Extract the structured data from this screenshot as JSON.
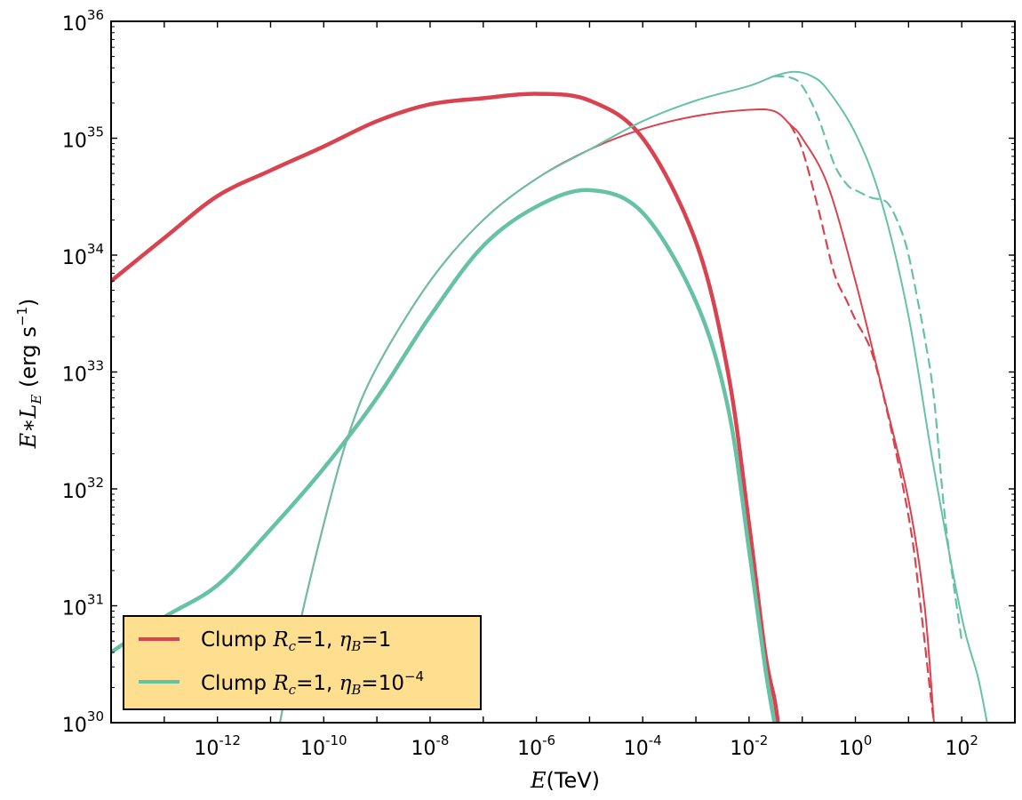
{
  "chart_data": {
    "type": "line",
    "xscale": "log",
    "yscale": "log",
    "xlim": [
      1e-14,
      1000
    ],
    "ylim": [
      1e+30,
      1e+36
    ],
    "grid": false,
    "legend": "bottom-left",
    "xlabel": {
      "var": "E",
      "text": "(TeV)"
    },
    "ylabel": {
      "var": "E∗L",
      "sub": "E",
      "text": " (erg s",
      "sup": "−1",
      "close": ")"
    },
    "x_ticks": [
      {
        "base": "10",
        "exp": "-12",
        "value": 1e-12
      },
      {
        "base": "10",
        "exp": "-10",
        "value": 1e-10
      },
      {
        "base": "10",
        "exp": "-8",
        "value": 1e-08
      },
      {
        "base": "10",
        "exp": "-6",
        "value": 1e-06
      },
      {
        "base": "10",
        "exp": "-4",
        "value": 0.0001
      },
      {
        "base": "10",
        "exp": "-2",
        "value": 0.01
      },
      {
        "base": "10",
        "exp": "0",
        "value": 1
      },
      {
        "base": "10",
        "exp": "2",
        "value": 100
      }
    ],
    "y_ticks": [
      {
        "base": "10",
        "exp": "30",
        "value": 1e+30
      },
      {
        "base": "10",
        "exp": "31",
        "value": 1e+31
      },
      {
        "base": "10",
        "exp": "32",
        "value": 1e+32
      },
      {
        "base": "10",
        "exp": "33",
        "value": 1e+33
      },
      {
        "base": "10",
        "exp": "34",
        "value": 1e+34
      },
      {
        "base": "10",
        "exp": "35",
        "value": 1e+35
      },
      {
        "base": "10",
        "exp": "36",
        "value": 1e+36
      }
    ],
    "legend_entries": [
      {
        "text": "Clump ",
        "var1": "R",
        "sub1": "c",
        "eq1": "=1, ",
        "var2": "η",
        "sub2": "B",
        "eq2": "=1",
        "color": "#d9434f"
      },
      {
        "text": "Clump ",
        "var1": "R",
        "sub1": "c",
        "eq1": "=1, ",
        "var2": "η",
        "sub2": "B",
        "eq2": "=10",
        "sup2": "−4",
        "color": "#66c2a5"
      }
    ],
    "series": [
      {
        "color": "#d9434f",
        "style": "thick",
        "x": [
          1e-14,
          1e-13,
          1e-12,
          1e-11,
          1e-10,
          1e-09,
          1e-08,
          1e-07,
          1e-06,
          1e-05,
          0.0001,
          0.001,
          0.004,
          0.01,
          0.02,
          0.03,
          0.035
        ],
        "y": [
          6e+33,
          1.4e+34,
          3.2e+34,
          5.3e+34,
          8.5e+34,
          1.4e+35,
          1.95e+35,
          2.2e+35,
          2.4e+35,
          2.1e+35,
          1e+35,
          1.3e+34,
          1e+33,
          5e+31,
          4e+30,
          1.6e+30,
          1e+30
        ]
      },
      {
        "color": "#66c2a5",
        "style": "thick",
        "x": [
          1e-14,
          1e-13,
          1e-12,
          1e-11,
          1e-10,
          1e-09,
          1e-08,
          1e-07,
          1e-06,
          1e-05,
          0.0001,
          0.001,
          0.004,
          0.01,
          0.02,
          0.03
        ],
        "y": [
          4e+30,
          8e+30,
          1.5e+31,
          4.5e+31,
          1.5e+32,
          6e+32,
          3e+33,
          1.2e+34,
          2.6e+34,
          3.6e+34,
          2.3e+34,
          4e+33,
          5e+32,
          3e+31,
          3e+30,
          1e+30
        ]
      },
      {
        "color": "#d9434f",
        "style": "thin",
        "x": [
          1.5e-11,
          3e-11,
          1e-10,
          3e-10,
          1e-09,
          1e-08,
          1e-07,
          1e-06,
          1e-05,
          0.0001,
          0.001,
          0.01,
          0.03,
          0.06,
          0.1,
          0.3,
          1,
          3,
          10,
          20,
          30
        ],
        "y": [
          1e+30,
          5e+30,
          5e+31,
          3e+32,
          1.1e+33,
          6e+33,
          2e+34,
          4.5e+34,
          8e+34,
          1.2e+35,
          1.55e+35,
          1.75e+35,
          1.7e+35,
          1.3e+35,
          1e+35,
          4e+34,
          6e+33,
          8e+32,
          8e+31,
          1e+31,
          1e+30
        ]
      },
      {
        "color": "#d9434f",
        "style": "dashed",
        "x": [
          0.06,
          0.1,
          0.2,
          0.4,
          0.7,
          1,
          2,
          4,
          8,
          12,
          16,
          20,
          25,
          30
        ],
        "y": [
          1.3e+35,
          8e+34,
          2.5e+34,
          7e+33,
          4e+33,
          2.8e+33,
          1.5e+33,
          4.5e+32,
          1e+32,
          3.5e+31,
          1.2e+31,
          5e+30,
          2e+30,
          1e+30
        ]
      },
      {
        "color": "#66c2a5",
        "style": "thin",
        "x": [
          1.5e-11,
          3e-11,
          1e-10,
          3e-10,
          1e-09,
          1e-08,
          1e-07,
          1e-06,
          1e-05,
          0.0001,
          0.001,
          0.01,
          0.03,
          0.07,
          0.15,
          0.3,
          1,
          3,
          10,
          30,
          100,
          200,
          300
        ],
        "y": [
          1e+30,
          5e+30,
          5e+31,
          3e+32,
          1.1e+33,
          6e+33,
          2e+34,
          4.5e+34,
          8e+34,
          1.4e+35,
          2.1e+35,
          2.8e+35,
          3.4e+35,
          3.7e+35,
          3.4e+35,
          2.6e+35,
          1.1e+35,
          3e+34,
          3e+33,
          1.5e+32,
          8e+30,
          2.5e+30,
          1e+30
        ]
      },
      {
        "color": "#66c2a5",
        "style": "dashed",
        "x": [
          0.03,
          0.06,
          0.1,
          0.2,
          0.4,
          0.7,
          1,
          2,
          4,
          7,
          10,
          15,
          20,
          30,
          50,
          100
        ],
        "y": [
          3.4e+35,
          3.3e+35,
          2.8e+35,
          1.5e+35,
          6e+34,
          4e+34,
          3.6e+34,
          3.1e+34,
          2.8e+34,
          1.7e+34,
          1e+34,
          4e+33,
          2e+33,
          6e+32,
          5e+31,
          5e+30
        ]
      }
    ]
  }
}
